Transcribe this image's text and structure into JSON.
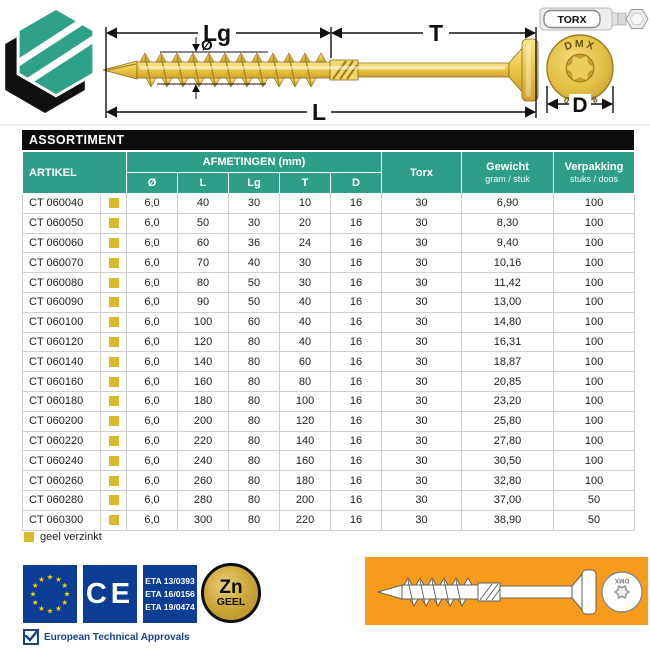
{
  "drawing": {
    "dim_lg": "Lg",
    "dim_t": "T",
    "dim_l": "L",
    "dim_d": "D",
    "dim_diameter": "Ø",
    "torx_bit_label": "TORX",
    "head_brand": "DMX",
    "head_size": "8×200",
    "promo_head_brand": "DMX"
  },
  "table": {
    "title": "ASSORTIMENT",
    "headers": {
      "artikel": "ARTIKEL",
      "group": "AFMETINGEN (mm)",
      "dims": [
        "Ø",
        "L",
        "Lg",
        "T",
        "D"
      ],
      "torx": "Torx",
      "gewicht": "Gewicht",
      "gewicht_sub": "gram / stuk",
      "verpakking": "Verpakking",
      "verpakking_sub": "stuks / doos"
    },
    "rows": [
      {
        "artikel": "CT 060040",
        "values": [
          "6,0",
          "40",
          "30",
          "10",
          "16",
          "30",
          "6,90",
          "100"
        ]
      },
      {
        "artikel": "CT 060050",
        "values": [
          "6,0",
          "50",
          "30",
          "20",
          "16",
          "30",
          "8,30",
          "100"
        ]
      },
      {
        "artikel": "CT 060060",
        "values": [
          "6,0",
          "60",
          "36",
          "24",
          "16",
          "30",
          "9,40",
          "100"
        ]
      },
      {
        "artikel": "CT 060070",
        "values": [
          "6,0",
          "70",
          "40",
          "30",
          "16",
          "30",
          "10,16",
          "100"
        ]
      },
      {
        "artikel": "CT 060080",
        "values": [
          "6,0",
          "80",
          "50",
          "30",
          "16",
          "30",
          "11,42",
          "100"
        ]
      },
      {
        "artikel": "CT 060090",
        "values": [
          "6,0",
          "90",
          "50",
          "40",
          "16",
          "30",
          "13,00",
          "100"
        ]
      },
      {
        "artikel": "CT 060100",
        "values": [
          "6,0",
          "100",
          "60",
          "40",
          "16",
          "30",
          "14,80",
          "100"
        ]
      },
      {
        "artikel": "CT 060120",
        "values": [
          "6,0",
          "120",
          "80",
          "40",
          "16",
          "30",
          "16,31",
          "100"
        ]
      },
      {
        "artikel": "CT 060140",
        "values": [
          "6,0",
          "140",
          "80",
          "60",
          "16",
          "30",
          "18,87",
          "100"
        ]
      },
      {
        "artikel": "CT 060160",
        "values": [
          "6,0",
          "160",
          "80",
          "80",
          "16",
          "30",
          "20,85",
          "100"
        ]
      },
      {
        "artikel": "CT 060180",
        "values": [
          "6,0",
          "180",
          "80",
          "100",
          "16",
          "30",
          "23,20",
          "100"
        ]
      },
      {
        "artikel": "CT 060200",
        "values": [
          "6,0",
          "200",
          "80",
          "120",
          "16",
          "30",
          "25,80",
          "100"
        ]
      },
      {
        "artikel": "CT 060220",
        "values": [
          "6,0",
          "220",
          "80",
          "140",
          "16",
          "30",
          "27,80",
          "100"
        ]
      },
      {
        "artikel": "CT 060240",
        "values": [
          "6,0",
          "240",
          "80",
          "160",
          "16",
          "30",
          "30,50",
          "100"
        ]
      },
      {
        "artikel": "CT 060260",
        "values": [
          "6,0",
          "260",
          "80",
          "180",
          "16",
          "30",
          "32,80",
          "100"
        ]
      },
      {
        "artikel": "CT 060280",
        "values": [
          "6,0",
          "280",
          "80",
          "200",
          "16",
          "30",
          "37,00",
          "50"
        ]
      },
      {
        "artikel": "CT 060300",
        "values": [
          "6,0",
          "300",
          "80",
          "220",
          "16",
          "30",
          "38,90",
          "50"
        ]
      }
    ]
  },
  "legend": {
    "label": "geel verzinkt"
  },
  "footer": {
    "ce_label": "CE",
    "eta_lines": [
      "ETA 13/0393",
      "ETA 16/0156",
      "ETA 19/0474"
    ],
    "zn_label": "Zn",
    "zn_sub": "GEEL",
    "approvals_label": "European Technical Approvals"
  },
  "colors": {
    "teal_header": "#2f9e88",
    "title_bar_black": "#0d0d0d",
    "swatch_yellow": "#d8ba2e",
    "promo_orange": "#f79b1c",
    "badge_blue": "#0c3d94",
    "zn_gold": "#cfa93c",
    "screw_gold": "#eac94f"
  }
}
